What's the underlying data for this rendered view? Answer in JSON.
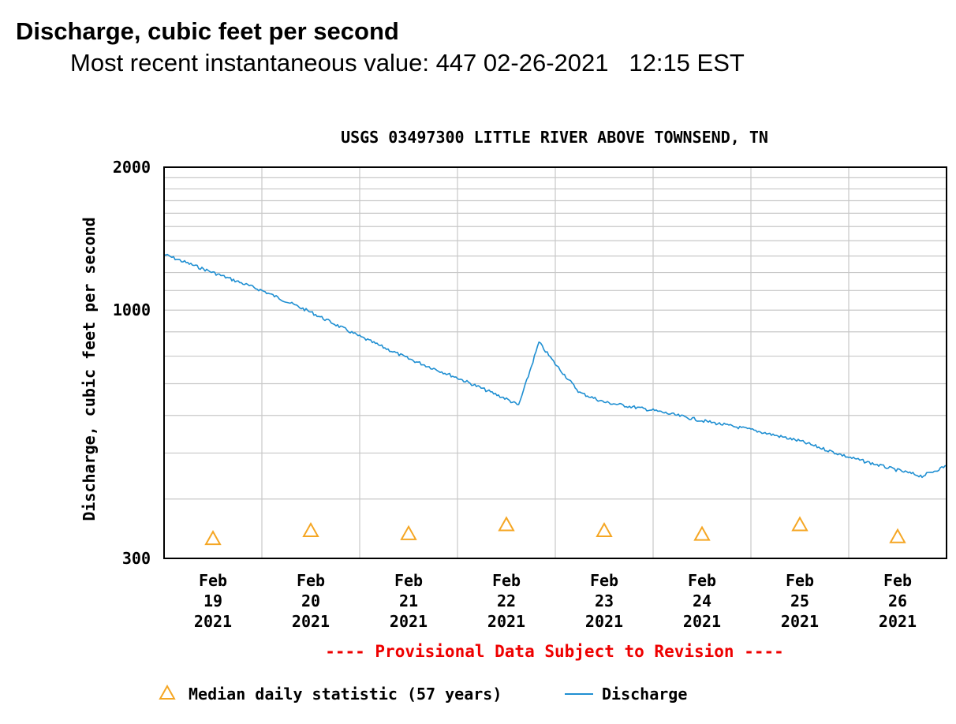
{
  "header": {
    "title": "Discharge, cubic feet per second",
    "recent_label": "Most recent instantaneous value:",
    "recent_value": "447",
    "recent_date": "02-26-2021",
    "recent_time": "12:15 EST"
  },
  "chart_data": {
    "type": "line",
    "title": "USGS 03497300 LITTLE RIVER ABOVE TOWNSEND, TN",
    "ylabel": "Discharge, cubic feet per second",
    "yscale": "log",
    "ylim": [
      300,
      2000
    ],
    "ytick_labels": [
      "2000",
      "1000",
      "300"
    ],
    "xlim": [
      "2021-02-18 12:00",
      "2021-02-26 12:00"
    ],
    "x_tick_labels": [
      {
        "month": "Feb",
        "day": "19",
        "year": "2021"
      },
      {
        "month": "Feb",
        "day": "20",
        "year": "2021"
      },
      {
        "month": "Feb",
        "day": "21",
        "year": "2021"
      },
      {
        "month": "Feb",
        "day": "22",
        "year": "2021"
      },
      {
        "month": "Feb",
        "day": "23",
        "year": "2021"
      },
      {
        "month": "Feb",
        "day": "24",
        "year": "2021"
      },
      {
        "month": "Feb",
        "day": "25",
        "year": "2021"
      },
      {
        "month": "Feb",
        "day": "26",
        "year": "2021"
      }
    ],
    "provisional_note": "---- Provisional Data Subject to Revision ----",
    "series": [
      {
        "name": "Discharge",
        "color": "#1f8fd2",
        "x": [
          "2021-02-18 12:00",
          "2021-02-19 00:00",
          "2021-02-19 12:00",
          "2021-02-20 00:00",
          "2021-02-20 12:00",
          "2021-02-21 00:00",
          "2021-02-21 12:00",
          "2021-02-22 00:00",
          "2021-02-22 03:00",
          "2021-02-22 05:00",
          "2021-02-22 08:00",
          "2021-02-22 12:00",
          "2021-02-22 18:00",
          "2021-02-23 00:00",
          "2021-02-23 12:00",
          "2021-02-24 00:00",
          "2021-02-24 12:00",
          "2021-02-25 00:00",
          "2021-02-25 12:00",
          "2021-02-26 00:00",
          "2021-02-26 06:00",
          "2021-02-26 12:00"
        ],
        "y": [
          1310,
          1200,
          1100,
          990,
          880,
          790,
          720,
          650,
          630,
          710,
          855,
          770,
          670,
          640,
          615,
          585,
          560,
          530,
          490,
          460,
          447,
          470
        ]
      },
      {
        "name": "Median daily statistic (57 years)",
        "color": "#f5a623",
        "marker": "triangle",
        "x": [
          "2021-02-19 00:00",
          "2021-02-20 00:00",
          "2021-02-21 00:00",
          "2021-02-22 00:00",
          "2021-02-23 00:00",
          "2021-02-24 00:00",
          "2021-02-25 00:00",
          "2021-02-26 00:00"
        ],
        "y": [
          330,
          343,
          338,
          353,
          343,
          337,
          353,
          333
        ]
      }
    ],
    "legend": [
      {
        "symbol": "triangle",
        "label": "Median daily statistic (57 years)"
      },
      {
        "symbol": "line",
        "label": "Discharge"
      }
    ],
    "legend_position": "bottom",
    "grid": true
  }
}
